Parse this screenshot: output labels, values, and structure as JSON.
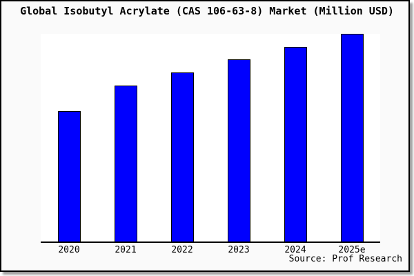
{
  "window": {
    "background_color": "#fafafa",
    "plot_background_color": "#ffffff",
    "frame_border_color": "#000000",
    "shadow_color": "#9c9c9c"
  },
  "chart": {
    "bar_color": "#0000fe",
    "bar_border_color": "#000000",
    "axis_color": "#000000"
  },
  "chart_data": {
    "type": "bar",
    "title": "Global Isobutyl Acrylate (CAS 106-63-8) Market (Million USD)",
    "categories": [
      "2020",
      "2021",
      "2022",
      "2023",
      "2024",
      "2025e"
    ],
    "values": [
      62.7,
      75.0,
      81.3,
      87.7,
      93.7,
      100.0
    ],
    "value_scale": "relative units (no y-axis tick labels visible); tallest bar 2025e = 100",
    "xlabel": "",
    "ylabel": "",
    "ylim": [
      0,
      100
    ],
    "grid": false,
    "legend": false,
    "y_axis_visible": false,
    "annotations": [
      "Source: Prof Research"
    ]
  }
}
